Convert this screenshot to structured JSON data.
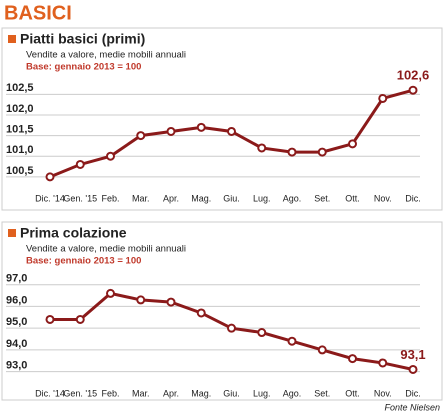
{
  "title": "BASICI",
  "source": "Fonte Nielsen",
  "chart_data": [
    {
      "type": "line",
      "title": "Piatti basici (primi)",
      "subtitle": "Vendite a valore, medie mobili annuali",
      "note": "Base: gennaio 2013 = 100",
      "categories": [
        "Dic. '14",
        "Gen. '15",
        "Feb.",
        "Mar.",
        "Apr.",
        "Mag.",
        "Giu.",
        "Lug.",
        "Ago.",
        "Set.",
        "Ott.",
        "Nov.",
        "Dic."
      ],
      "series": [
        {
          "name": "Piatti basici (primi)",
          "color": "#8b1a1a",
          "values": [
            100.5,
            100.8,
            101.0,
            101.5,
            101.6,
            101.7,
            101.6,
            101.2,
            101.1,
            101.1,
            101.3,
            102.4,
            102.6
          ],
          "value_labels": [
            null,
            null,
            null,
            null,
            null,
            null,
            null,
            null,
            null,
            null,
            null,
            null,
            "102,6"
          ]
        }
      ],
      "ylim": [
        100.4,
        102.75
      ],
      "yticks": [
        {
          "value": 100.5,
          "label": "100,5"
        },
        {
          "value": 101.0,
          "label": "101,0"
        },
        {
          "value": 101.5,
          "label": "101,5"
        },
        {
          "value": 102.0,
          "label": "102,0"
        },
        {
          "value": 102.5,
          "label": "102,5"
        }
      ],
      "grid": true
    },
    {
      "type": "line",
      "title": "Prima colazione",
      "subtitle": "Vendite a valore, medie mobili annuali",
      "note": "Base: gennaio 2013 = 100",
      "categories": [
        "Dic. '14",
        "Gen. '15",
        "Feb.",
        "Mar.",
        "Apr.",
        "Mag.",
        "Giu.",
        "Lug.",
        "Ago.",
        "Set.",
        "Ott.",
        "Nov.",
        "Dic."
      ],
      "series": [
        {
          "name": "Prima colazione",
          "color": "#8b1a1a",
          "values": [
            95.4,
            95.4,
            96.6,
            96.3,
            96.2,
            95.7,
            95.0,
            94.8,
            94.4,
            94.0,
            93.6,
            93.4,
            93.1
          ],
          "value_labels": [
            null,
            null,
            null,
            null,
            null,
            null,
            null,
            null,
            null,
            null,
            null,
            null,
            "93,1"
          ]
        }
      ],
      "ylim": [
        92.8,
        97.4
      ],
      "yticks": [
        {
          "value": 93.0,
          "label": "93,0"
        },
        {
          "value": 94.0,
          "label": "94,0"
        },
        {
          "value": 95.0,
          "label": "95,0"
        },
        {
          "value": 96.0,
          "label": "96,0"
        },
        {
          "value": 97.0,
          "label": "97,0"
        }
      ],
      "grid": true
    }
  ]
}
